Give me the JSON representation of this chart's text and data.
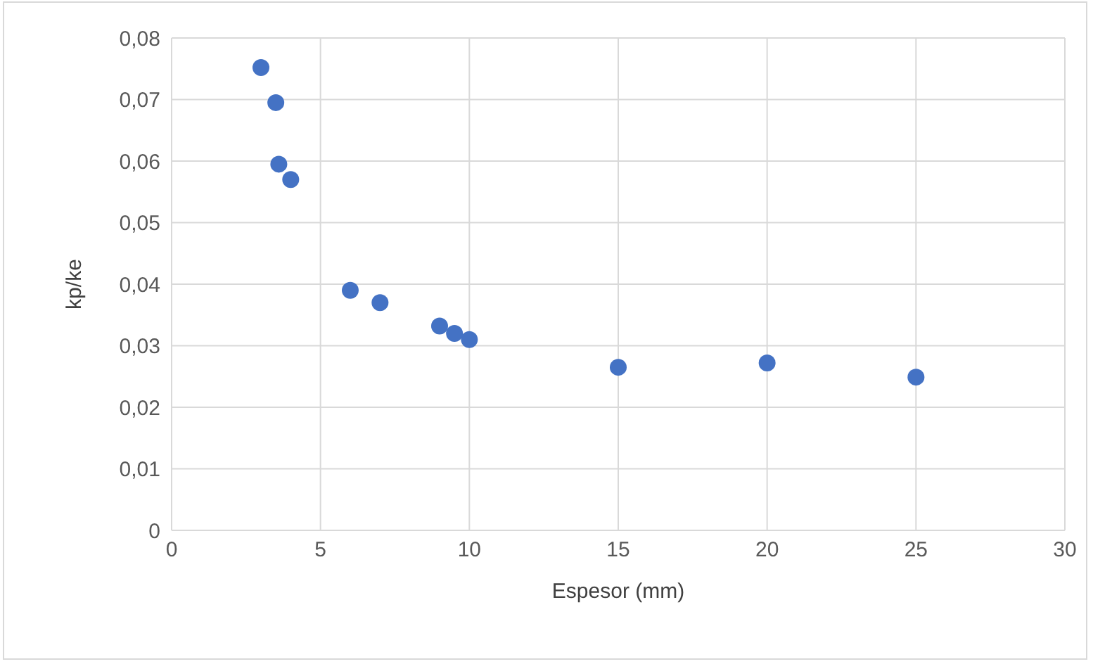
{
  "chart_data": {
    "type": "scatter",
    "xlabel": "Espesor (mm)",
    "ylabel": "kp/ke",
    "x": [
      3,
      3.5,
      3.6,
      4,
      6,
      7,
      9,
      9.5,
      10,
      15,
      20,
      25
    ],
    "series": [
      {
        "color": "#4472c4",
        "values": [
          0.0752,
          0.0695,
          0.0595,
          0.057,
          0.039,
          0.037,
          0.0332,
          0.032,
          0.031,
          0.0265,
          0.0272,
          0.0249
        ]
      }
    ],
    "xlim": [
      0,
      30
    ],
    "xticks": [
      0,
      5,
      10,
      15,
      20,
      25,
      30
    ],
    "ylim": [
      0,
      0.08
    ],
    "yticks": [
      0,
      {
        "value": 0.01,
        "label": "0,01"
      },
      {
        "value": 0.02,
        "label": "0,02"
      },
      {
        "value": 0.03,
        "label": "0,03"
      },
      {
        "value": 0.04,
        "label": "0,04"
      },
      {
        "value": 0.05,
        "label": "0,05"
      },
      {
        "value": 0.06,
        "label": "0,06"
      },
      {
        "value": 0.07,
        "label": "0,07"
      },
      {
        "value": 0.08,
        "label": "0,08"
      }
    ],
    "grid": true,
    "marker": "circle",
    "legend": false
  }
}
